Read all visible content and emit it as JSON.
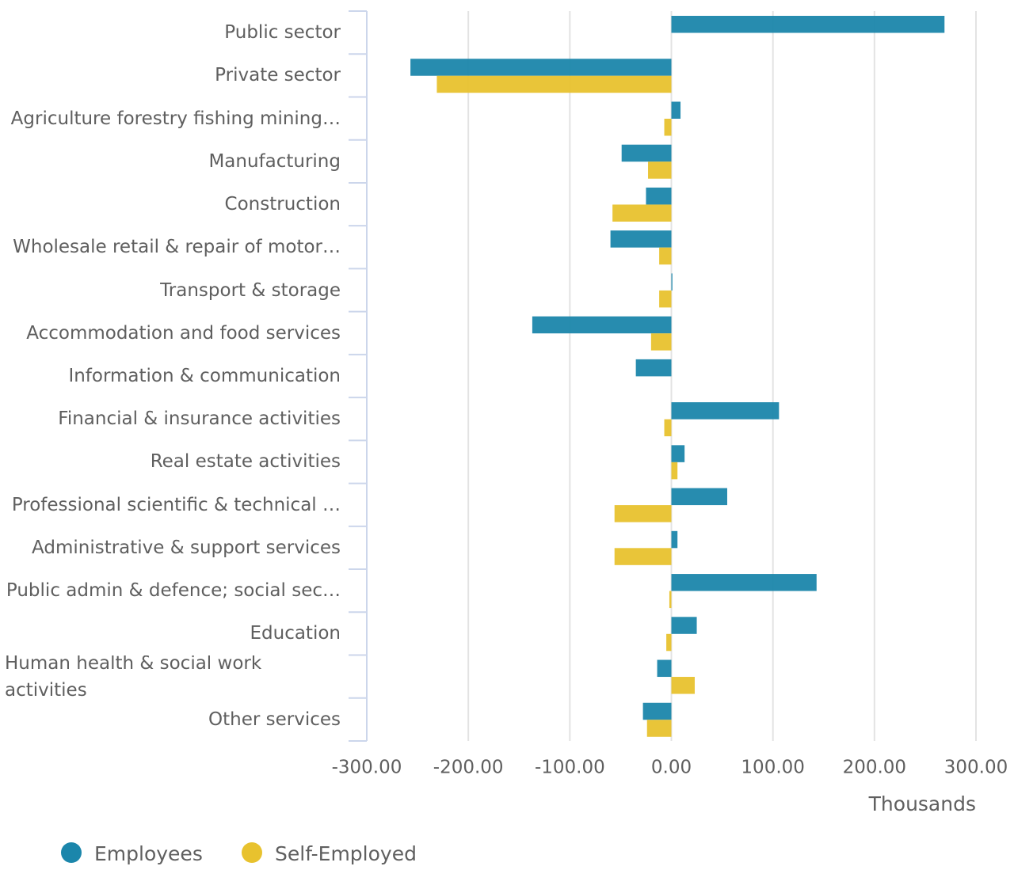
{
  "chart_data": {
    "type": "bar",
    "orientation": "horizontal",
    "categories": [
      "Public sector",
      "Private sector",
      "Agriculture forestry fishing mining…",
      "Manufacturing",
      "Construction",
      "Wholesale retail & repair of motor…",
      "Transport & storage",
      "Accommodation and food services",
      "Information & communication",
      "Financial & insurance activities",
      "Real estate activities",
      "Professional scientific & technical …",
      "Administrative & support services",
      "Public admin & defence; social sec…",
      "Education",
      "Human health & social work activities",
      "Other services"
    ],
    "series": [
      {
        "name": "Employees",
        "color": "#1b86ab",
        "values": [
          269,
          -257,
          9,
          -49,
          -25,
          -60,
          1,
          -137,
          -35,
          106,
          13,
          55,
          6,
          143,
          25,
          -14,
          -28
        ]
      },
      {
        "name": "Self-Employed",
        "color": "#e8c22e",
        "values": [
          null,
          -231,
          -7,
          -23,
          -58,
          -12,
          -12,
          -20,
          null,
          -7,
          6,
          -56,
          -56,
          -2,
          -5,
          23,
          -24
        ]
      }
    ],
    "xlim": [
      -300,
      300
    ],
    "xticks": [
      {
        "value": -300,
        "label": "-300.00"
      },
      {
        "value": -200,
        "label": "-200.00"
      },
      {
        "value": -100,
        "label": "-100.00"
      },
      {
        "value": 0,
        "label": "0.00"
      },
      {
        "value": 100,
        "label": "100.00"
      },
      {
        "value": 200,
        "label": "200.00"
      },
      {
        "value": 300,
        "label": "300.00"
      }
    ],
    "x_label": "Thousands",
    "grid": true,
    "legend": "bottom-left"
  }
}
